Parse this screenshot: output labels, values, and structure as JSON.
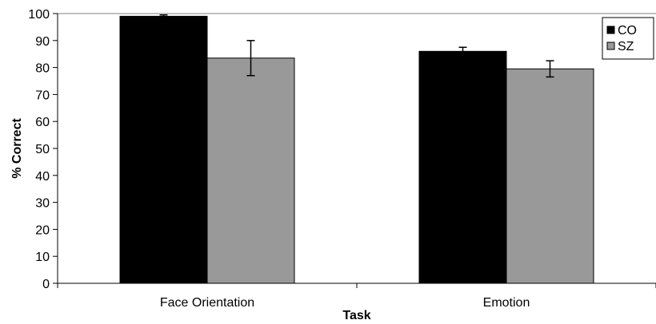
{
  "chart_data": {
    "type": "bar",
    "title": "",
    "xlabel": "Task",
    "ylabel": "% Correct",
    "categories": [
      "Face Orientation",
      "Emotion"
    ],
    "series": [
      {
        "name": "CO",
        "color": "#000000",
        "values": [
          99,
          86
        ],
        "error": [
          0.5,
          1.5
        ]
      },
      {
        "name": "SZ",
        "color": "#999999",
        "values": [
          83.5,
          79.5
        ],
        "error": [
          6.5,
          3
        ]
      }
    ],
    "ylim": [
      0,
      100
    ],
    "yticks": [
      0,
      10,
      20,
      30,
      40,
      50,
      60,
      70,
      80,
      90,
      100
    ],
    "grid": false,
    "legend": "top-right"
  }
}
